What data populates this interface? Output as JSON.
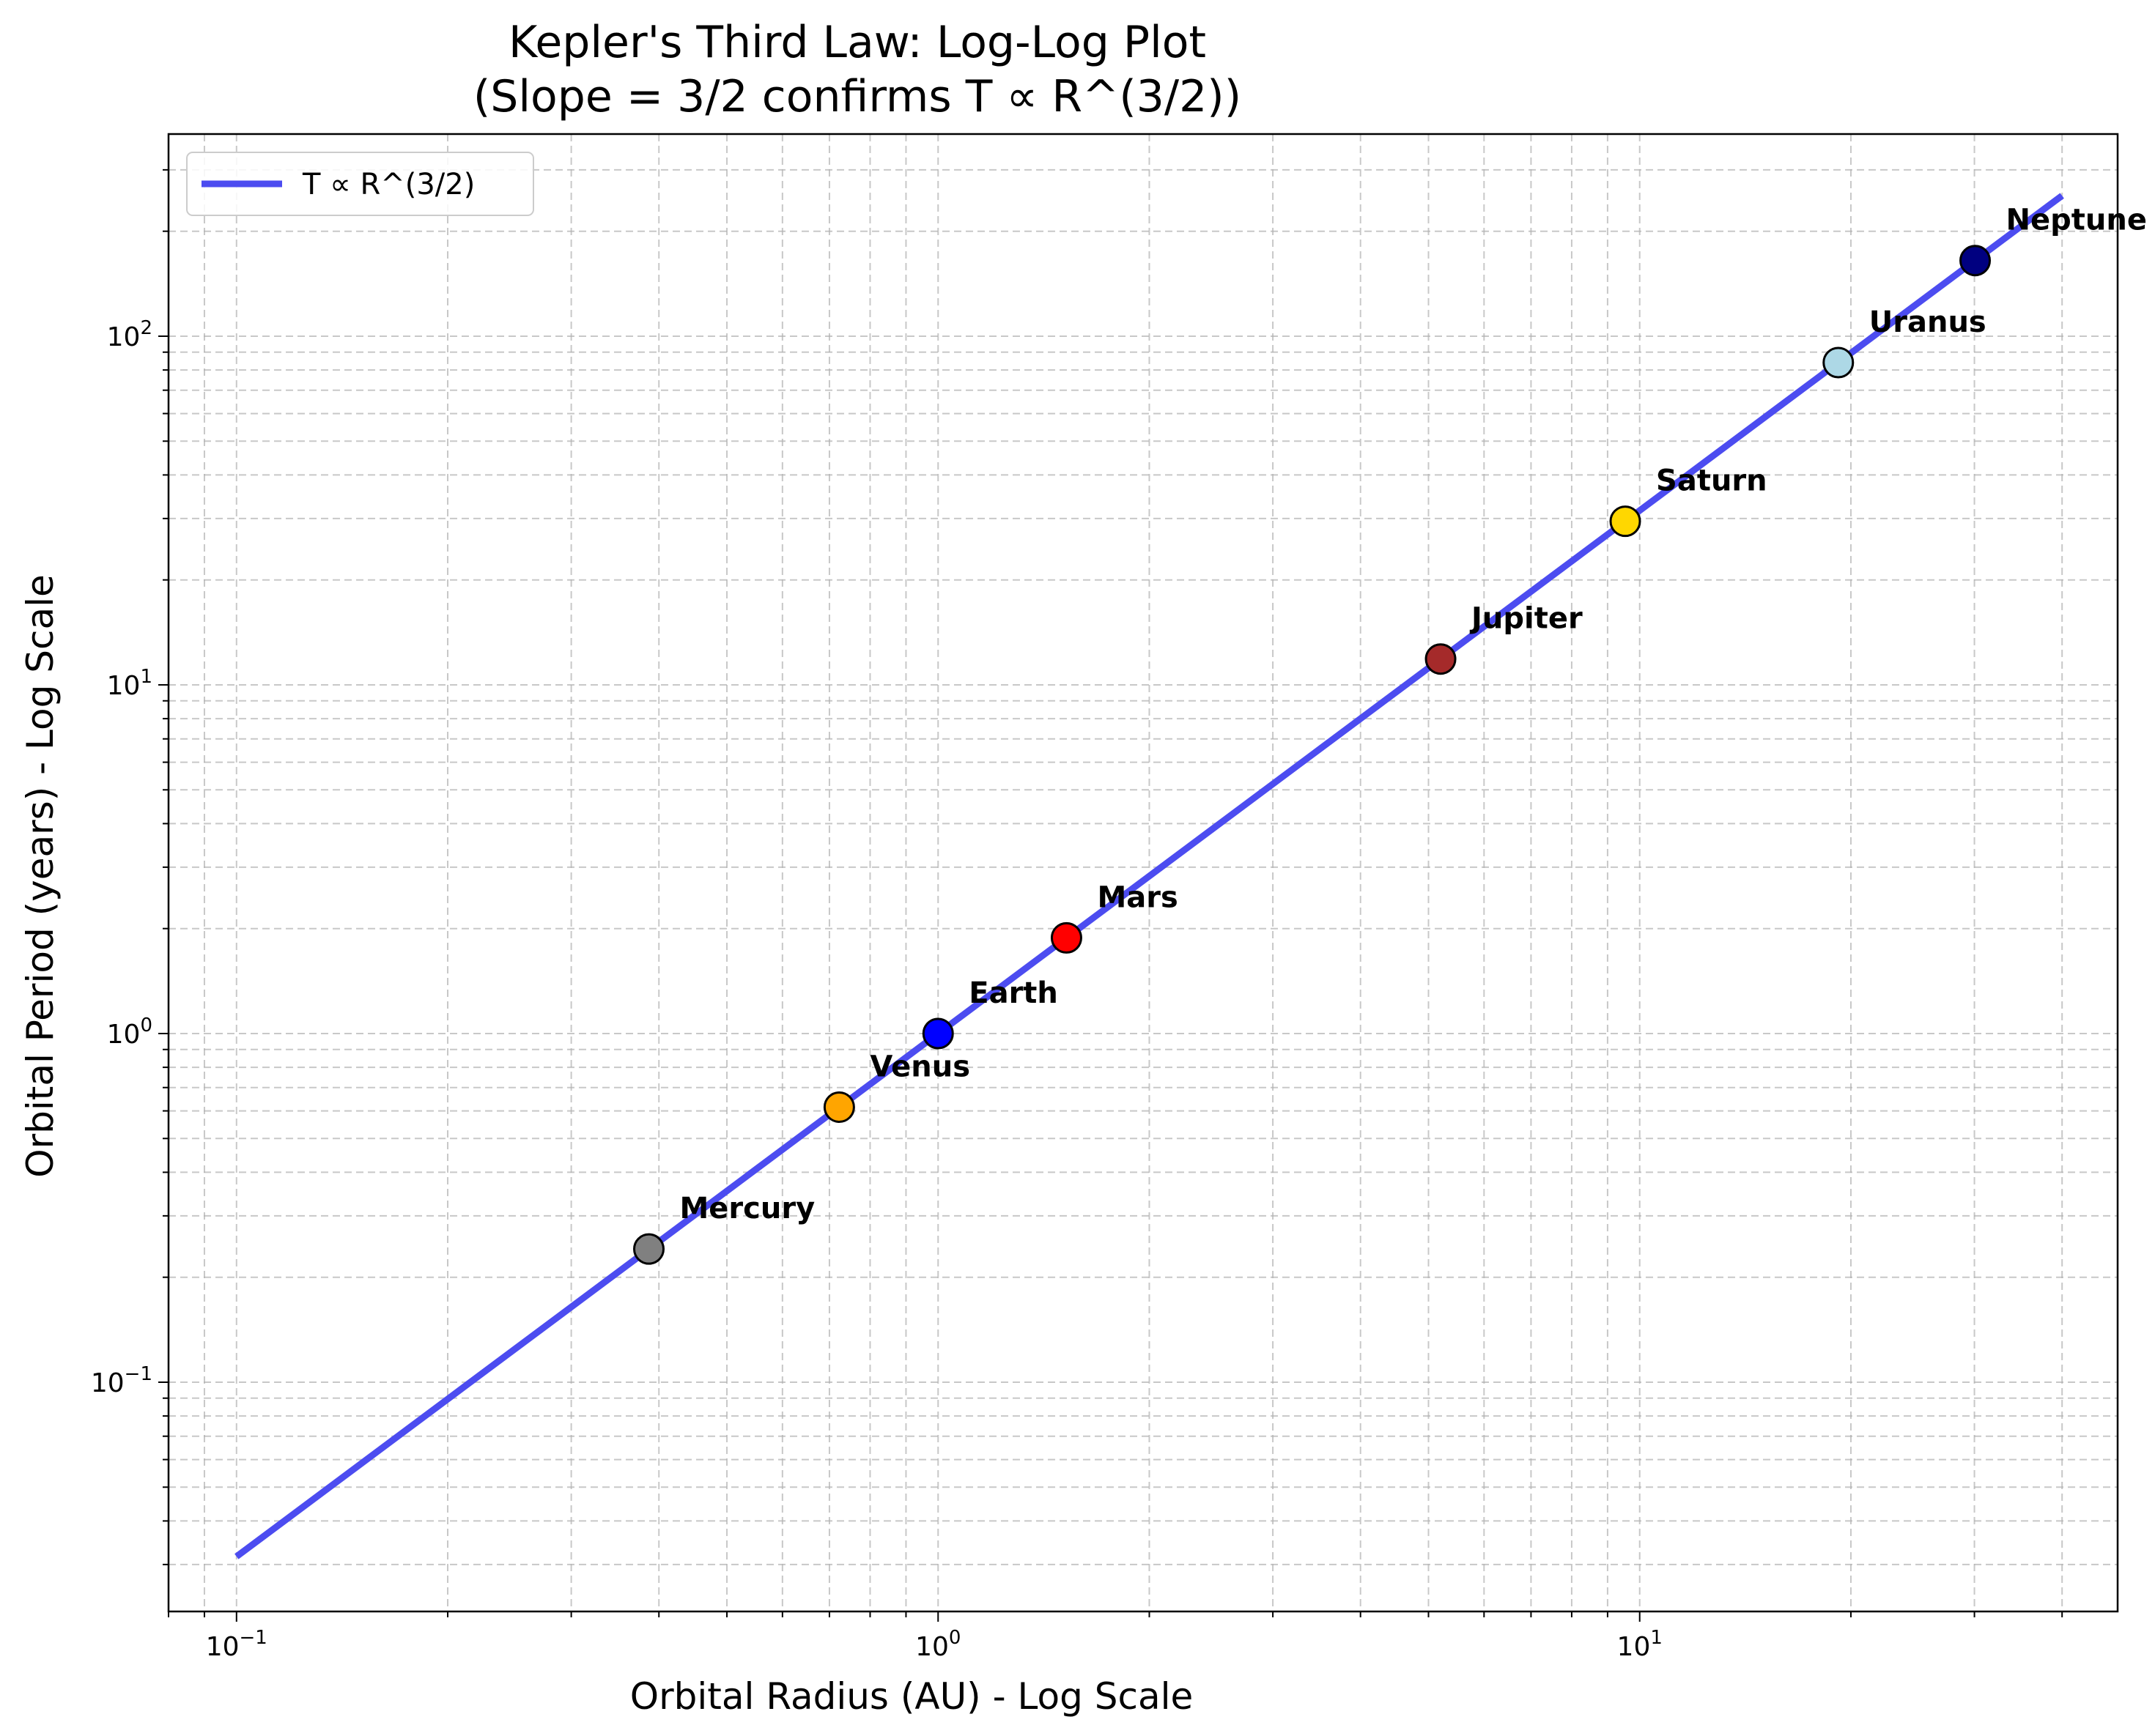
{
  "chart_data": {
    "type": "scatter",
    "title": "Kepler's Third Law: Log-Log Plot",
    "subtitle": "(Slope = 3/2 confirms T ∝ R^(3/2))",
    "xlabel": "Orbital Radius (AU) - Log Scale",
    "ylabel": "Orbital Period (years) - Log Scale",
    "xscale": "log",
    "yscale": "log",
    "xlim": [
      0.08,
      48
    ],
    "ylim": [
      0.022,
      380
    ],
    "grid": true,
    "legend_position": "top-left",
    "x_ticks": [
      {
        "base": "10",
        "exp": "−1",
        "value": 0.1
      },
      {
        "base": "10",
        "exp": "0",
        "value": 1
      },
      {
        "base": "10",
        "exp": "1",
        "value": 10
      }
    ],
    "y_ticks": [
      {
        "base": "10",
        "exp": "−1",
        "value": 0.1
      },
      {
        "base": "10",
        "exp": "0",
        "value": 1
      },
      {
        "base": "10",
        "exp": "1",
        "value": 10
      },
      {
        "base": "10",
        "exp": "2",
        "value": 100
      }
    ],
    "fit_line": {
      "name": "T ∝ R^(3/2)",
      "color": "#4c4cf0",
      "x_range": [
        0.1,
        40
      ],
      "exponent": 1.5
    },
    "points": [
      {
        "name": "Mercury",
        "x": 0.387,
        "y": 0.241,
        "color": "#808080"
      },
      {
        "name": "Venus",
        "x": 0.723,
        "y": 0.615,
        "color": "#ffa500"
      },
      {
        "name": "Earth",
        "x": 1.0,
        "y": 1.0,
        "color": "#0000ff"
      },
      {
        "name": "Mars",
        "x": 1.524,
        "y": 1.881,
        "color": "#ff0000"
      },
      {
        "name": "Jupiter",
        "x": 5.203,
        "y": 11.86,
        "color": "#a52a2a"
      },
      {
        "name": "Saturn",
        "x": 9.537,
        "y": 29.46,
        "color": "#ffd700"
      },
      {
        "name": "Uranus",
        "x": 19.19,
        "y": 84.01,
        "color": "#add8e6"
      },
      {
        "name": "Neptune",
        "x": 30.07,
        "y": 164.8,
        "color": "#000080"
      }
    ]
  }
}
